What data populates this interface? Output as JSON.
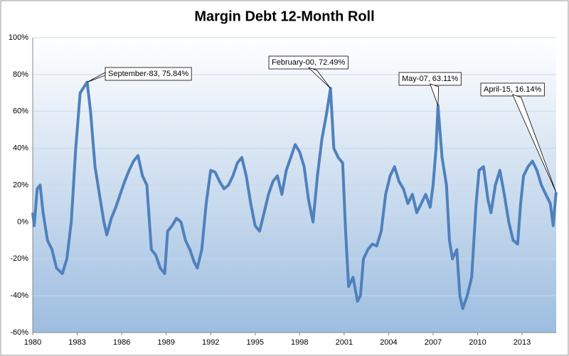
{
  "chart_data": {
    "type": "line",
    "title": "Margin Debt 12-Month Roll",
    "x": [
      1980.0,
      1980.1,
      1980.3,
      1980.5,
      1980.7,
      1981.0,
      1981.3,
      1981.6,
      1982.0,
      1982.3,
      1982.6,
      1982.9,
      1983.2,
      1983.67,
      1983.9,
      1984.2,
      1984.5,
      1984.8,
      1985.0,
      1985.3,
      1985.6,
      1985.9,
      1986.2,
      1986.5,
      1986.8,
      1987.1,
      1987.4,
      1987.7,
      1988.0,
      1988.3,
      1988.6,
      1988.9,
      1989.1,
      1989.4,
      1989.7,
      1990.0,
      1990.3,
      1990.6,
      1990.9,
      1991.1,
      1991.4,
      1991.7,
      1992.0,
      1992.3,
      1992.6,
      1992.9,
      1993.2,
      1993.5,
      1993.8,
      1994.1,
      1994.4,
      1994.7,
      1995.0,
      1995.3,
      1995.6,
      1995.9,
      1996.2,
      1996.5,
      1996.8,
      1997.1,
      1997.4,
      1997.7,
      1998.0,
      1998.3,
      1998.6,
      1998.9,
      1999.2,
      1999.5,
      1999.8,
      2000.08,
      2000.3,
      2000.6,
      2000.9,
      2001.1,
      2001.3,
      2001.6,
      2001.9,
      2002.1,
      2002.3,
      2002.6,
      2002.9,
      2003.2,
      2003.5,
      2003.8,
      2004.1,
      2004.4,
      2004.7,
      2005.0,
      2005.3,
      2005.6,
      2005.9,
      2006.2,
      2006.5,
      2006.8,
      2007.0,
      2007.2,
      2007.33,
      2007.6,
      2007.9,
      2008.1,
      2008.3,
      2008.6,
      2008.8,
      2009.0,
      2009.3,
      2009.6,
      2009.9,
      2010.1,
      2010.4,
      2010.7,
      2010.9,
      2011.2,
      2011.5,
      2011.8,
      2012.1,
      2012.4,
      2012.7,
      2012.9,
      2013.1,
      2013.4,
      2013.7,
      2014.0,
      2014.3,
      2014.6,
      2014.9,
      2015.1,
      2015.29
    ],
    "series": [
      {
        "color": "#4f81bd",
        "values": [
          5,
          -2,
          18,
          20,
          5,
          -10,
          -15,
          -25,
          -28,
          -20,
          0,
          40,
          70,
          75.84,
          60,
          30,
          15,
          0,
          -7,
          2,
          8,
          15,
          22,
          28,
          33,
          36,
          25,
          20,
          -15,
          -18,
          -25,
          -28,
          -5,
          -2,
          2,
          0,
          -10,
          -15,
          -22,
          -25,
          -15,
          10,
          28,
          27,
          22,
          18,
          20,
          25,
          32,
          35,
          25,
          10,
          -2,
          -5,
          5,
          15,
          22,
          25,
          15,
          28,
          35,
          42,
          38,
          30,
          12,
          0,
          25,
          45,
          58,
          72.49,
          40,
          35,
          32,
          -5,
          -35,
          -30,
          -43,
          -40,
          -20,
          -15,
          -12,
          -13,
          -5,
          15,
          25,
          30,
          22,
          18,
          10,
          15,
          5,
          10,
          15,
          8,
          20,
          40,
          63.11,
          35,
          20,
          -10,
          -20,
          -15,
          -40,
          -47,
          -40,
          -30,
          10,
          28,
          30,
          12,
          5,
          20,
          28,
          15,
          0,
          -10,
          -12,
          10,
          25,
          30,
          33,
          28,
          20,
          15,
          10,
          -2,
          16.14
        ]
      }
    ],
    "xlim": [
      1980,
      2015.3
    ],
    "xticks": [
      1980,
      1983,
      1986,
      1989,
      1992,
      1995,
      1998,
      2001,
      2004,
      2007,
      2010,
      2013
    ],
    "ylim": [
      -60,
      100
    ],
    "yticks": [
      {
        "value": -60,
        "label": "-60%"
      },
      {
        "value": -40,
        "label": "-40%"
      },
      {
        "value": -20,
        "label": "-20%"
      },
      {
        "value": 0,
        "label": "0%"
      },
      {
        "value": 20,
        "label": "20%"
      },
      {
        "value": 40,
        "label": "40%"
      },
      {
        "value": 60,
        "label": "60%"
      },
      {
        "value": 80,
        "label": "80%"
      },
      {
        "value": 100,
        "label": "100%"
      }
    ],
    "grid": true,
    "annotations": [
      {
        "label": "September-83, 75.84%",
        "x": 1983.67,
        "y": 75.84
      },
      {
        "label": "February-00, 72.49%",
        "x": 2000.08,
        "y": 72.49
      },
      {
        "label": "May-07, 63.11%",
        "x": 2007.33,
        "y": 63.11
      },
      {
        "label": "April-15, 16.14%",
        "x": 2015.29,
        "y": 16.14
      }
    ]
  }
}
